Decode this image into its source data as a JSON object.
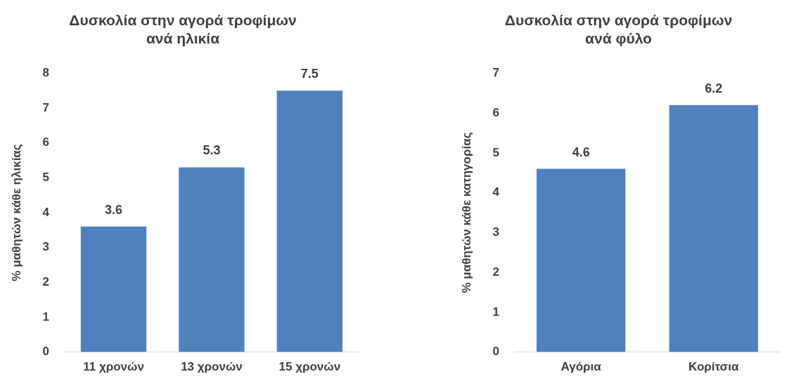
{
  "chart_data": [
    {
      "type": "bar",
      "title": "Δυσκολία στην αγορά τροφίμων\nανά ηλικία",
      "ylabel": "% μαθητών κάθε ηλικίας",
      "categories": [
        "11 χρονών",
        "13 χρονών",
        "15 χρονών"
      ],
      "values": [
        3.6,
        5.3,
        7.5
      ],
      "color": "#4f81bd",
      "ylim": [
        0,
        8
      ],
      "yticks": [
        0,
        1,
        2,
        3,
        4,
        5,
        6,
        7,
        8
      ],
      "data_labels": true
    },
    {
      "type": "bar",
      "title": "Δυσκολία στην αγορά τροφίμων\nανά φύλο",
      "ylabel": "% μαθητών κάθε κατηγορίας",
      "categories": [
        "Αγόρια",
        "Κορίτσια"
      ],
      "values": [
        4.6,
        6.2
      ],
      "color": "#4f81bd",
      "ylim": [
        0,
        7
      ],
      "yticks": [
        0,
        1,
        2,
        3,
        4,
        5,
        6,
        7
      ],
      "data_labels": true
    }
  ]
}
